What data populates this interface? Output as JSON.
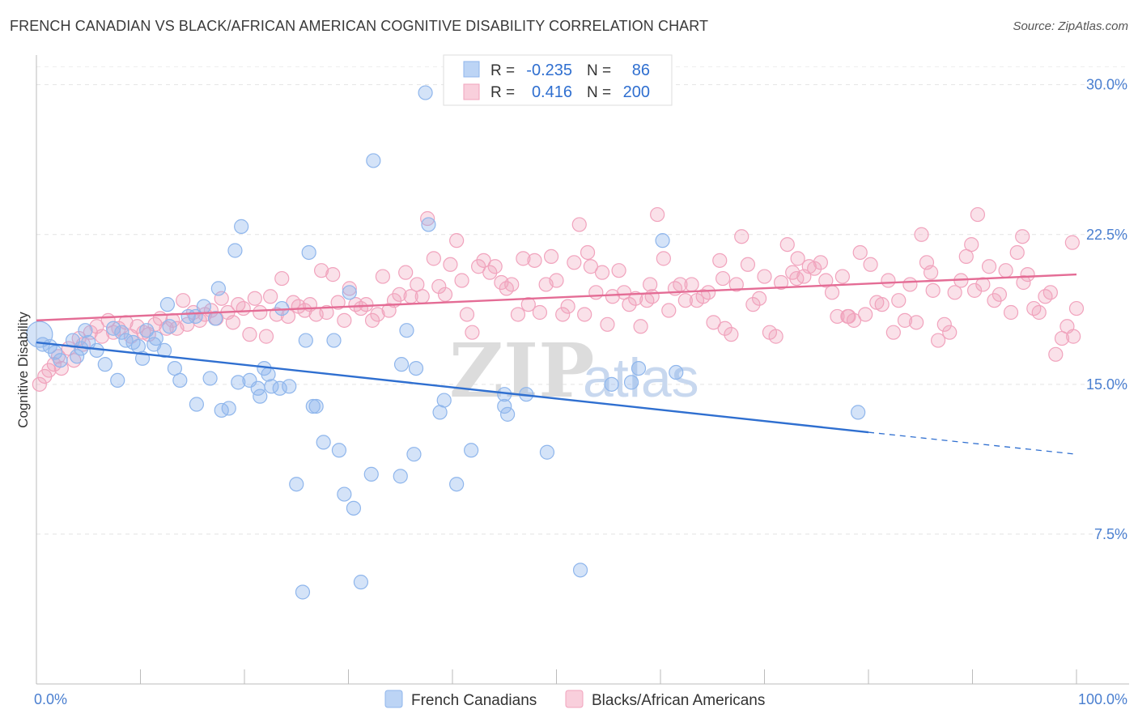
{
  "title": "FRENCH CANADIAN VS BLACK/AFRICAN AMERICAN COGNITIVE DISABILITY CORRELATION CHART",
  "source": "Source: ZipAtlas.com",
  "watermark": {
    "zip": "ZIP",
    "atlas": "atlas"
  },
  "chart_data": {
    "type": "scatter",
    "ylabel": "Cognitive Disability",
    "xlabel": "",
    "xlim": [
      0,
      100
    ],
    "ylim": [
      0,
      31
    ],
    "x_tick_labels": [
      "0.0%",
      "100.0%"
    ],
    "y_ticks": [
      7.5,
      15.0,
      22.5,
      30.0
    ],
    "y_tick_labels": [
      "7.5%",
      "15.0%",
      "22.5%",
      "30.0%"
    ],
    "grid": true,
    "legend_top": [
      {
        "r_label": "R =",
        "r_value": "-0.235",
        "n_label": "N =",
        "n_value": "86",
        "color": "#8fb6ec"
      },
      {
        "r_label": "R =",
        "r_value": "0.416",
        "n_label": "N =",
        "n_value": "200",
        "color": "#f1a3bd"
      }
    ],
    "series": [
      {
        "name": "French Canadians",
        "color": "#8fb6ec",
        "line_color": "#2f6fd0",
        "trend": {
          "x0": 0,
          "y0": 17.1,
          "x1": 80,
          "y1": 12.6,
          "dash_to_x": 100,
          "dash_to_y": 11.5
        },
        "points": [
          [
            0.3,
            17.5
          ],
          [
            0.6,
            17.0
          ],
          [
            1.3,
            16.9
          ],
          [
            1.8,
            16.6
          ],
          [
            2.3,
            16.2
          ],
          [
            3.5,
            17.2
          ],
          [
            3.9,
            16.4
          ],
          [
            4.3,
            16.8
          ],
          [
            4.7,
            17.7
          ],
          [
            5.0,
            17.1
          ],
          [
            5.8,
            16.7
          ],
          [
            6.6,
            16.0
          ],
          [
            7.4,
            17.8
          ],
          [
            7.8,
            15.2
          ],
          [
            8.2,
            17.6
          ],
          [
            8.6,
            17.2
          ],
          [
            9.3,
            17.1
          ],
          [
            9.8,
            16.9
          ],
          [
            10.2,
            16.3
          ],
          [
            10.6,
            17.7
          ],
          [
            11.3,
            17.0
          ],
          [
            11.5,
            17.3
          ],
          [
            12.3,
            16.7
          ],
          [
            12.8,
            17.9
          ],
          [
            12.6,
            19.0
          ],
          [
            13.3,
            15.8
          ],
          [
            13.8,
            15.2
          ],
          [
            14.6,
            18.4
          ],
          [
            15.3,
            18.4
          ],
          [
            15.4,
            14.0
          ],
          [
            16.1,
            18.9
          ],
          [
            16.7,
            15.3
          ],
          [
            17.2,
            18.3
          ],
          [
            17.5,
            19.8
          ],
          [
            17.8,
            13.7
          ],
          [
            18.5,
            13.8
          ],
          [
            19.1,
            21.7
          ],
          [
            19.4,
            15.1
          ],
          [
            19.7,
            22.9
          ],
          [
            20.5,
            15.2
          ],
          [
            21.3,
            14.8
          ],
          [
            21.5,
            14.4
          ],
          [
            21.9,
            15.8
          ],
          [
            22.3,
            15.5
          ],
          [
            22.6,
            14.9
          ],
          [
            23.4,
            14.8
          ],
          [
            23.6,
            18.8
          ],
          [
            24.3,
            14.9
          ],
          [
            25.0,
            10.0
          ],
          [
            25.6,
            4.6
          ],
          [
            25.9,
            17.2
          ],
          [
            26.2,
            21.6
          ],
          [
            26.6,
            13.9
          ],
          [
            26.9,
            13.9
          ],
          [
            27.6,
            12.1
          ],
          [
            28.6,
            17.2
          ],
          [
            29.1,
            11.7
          ],
          [
            29.6,
            9.5
          ],
          [
            30.1,
            19.6
          ],
          [
            30.5,
            8.8
          ],
          [
            31.2,
            5.1
          ],
          [
            32.2,
            10.5
          ],
          [
            32.4,
            26.2
          ],
          [
            35.0,
            10.4
          ],
          [
            35.1,
            16.0
          ],
          [
            35.6,
            17.7
          ],
          [
            36.3,
            11.5
          ],
          [
            36.5,
            15.8
          ],
          [
            37.7,
            23.0
          ],
          [
            37.4,
            29.6
          ],
          [
            38.8,
            13.6
          ],
          [
            39.2,
            14.2
          ],
          [
            40.4,
            10.0
          ],
          [
            41.8,
            11.7
          ],
          [
            45.0,
            14.5
          ],
          [
            45.0,
            13.9
          ],
          [
            45.3,
            13.5
          ],
          [
            47.1,
            14.5
          ],
          [
            49.1,
            11.6
          ],
          [
            52.3,
            5.7
          ],
          [
            55.3,
            15.0
          ],
          [
            57.2,
            15.1
          ],
          [
            57.9,
            15.8
          ],
          [
            60.2,
            22.2
          ],
          [
            61.5,
            15.6
          ],
          [
            79.0,
            13.6
          ]
        ]
      },
      {
        "name": "Blacks/African Americans",
        "color": "#f1a3bd",
        "line_color": "#e46c95",
        "trend": {
          "x0": 0,
          "y0": 18.2,
          "x1": 100,
          "y1": 20.5
        },
        "points": [
          [
            0.3,
            15.0
          ],
          [
            0.8,
            15.4
          ],
          [
            1.2,
            15.7
          ],
          [
            1.7,
            16.0
          ],
          [
            2.1,
            16.4
          ],
          [
            2.4,
            15.8
          ],
          [
            3.1,
            16.8
          ],
          [
            3.6,
            16.2
          ],
          [
            4.1,
            17.3
          ],
          [
            4.5,
            17.0
          ],
          [
            5.2,
            17.6
          ],
          [
            5.8,
            17.9
          ],
          [
            6.3,
            17.4
          ],
          [
            6.9,
            18.2
          ],
          [
            7.4,
            17.6
          ],
          [
            7.9,
            17.8
          ],
          [
            8.6,
            18.1
          ],
          [
            9.1,
            17.4
          ],
          [
            9.7,
            17.9
          ],
          [
            10.3,
            17.6
          ],
          [
            10.8,
            17.5
          ],
          [
            11.4,
            18.0
          ],
          [
            11.9,
            18.3
          ],
          [
            12.5,
            17.8
          ],
          [
            13.1,
            18.2
          ],
          [
            13.5,
            17.8
          ],
          [
            14.1,
            19.2
          ],
          [
            14.5,
            18.0
          ],
          [
            15.1,
            18.6
          ],
          [
            15.7,
            18.2
          ],
          [
            16.2,
            18.5
          ],
          [
            16.8,
            18.7
          ],
          [
            17.3,
            18.3
          ],
          [
            17.8,
            19.3
          ],
          [
            18.4,
            18.6
          ],
          [
            18.9,
            18.1
          ],
          [
            19.4,
            19.0
          ],
          [
            19.9,
            18.8
          ],
          [
            20.5,
            17.5
          ],
          [
            21.0,
            19.3
          ],
          [
            21.5,
            18.6
          ],
          [
            22.1,
            17.4
          ],
          [
            22.5,
            19.4
          ],
          [
            23.1,
            18.5
          ],
          [
            23.6,
            20.3
          ],
          [
            24.2,
            18.4
          ],
          [
            24.7,
            19.1
          ],
          [
            25.2,
            18.9
          ],
          [
            25.8,
            18.7
          ],
          [
            26.3,
            19.0
          ],
          [
            26.9,
            18.5
          ],
          [
            27.4,
            20.7
          ],
          [
            27.9,
            18.6
          ],
          [
            28.5,
            20.5
          ],
          [
            29.0,
            19.1
          ],
          [
            29.6,
            18.2
          ],
          [
            30.1,
            19.8
          ],
          [
            30.7,
            19.0
          ],
          [
            31.2,
            18.8
          ],
          [
            31.7,
            19.0
          ],
          [
            32.3,
            18.2
          ],
          [
            32.8,
            18.5
          ],
          [
            33.3,
            20.4
          ],
          [
            33.9,
            18.7
          ],
          [
            34.4,
            19.2
          ],
          [
            34.9,
            19.5
          ],
          [
            35.5,
            20.6
          ],
          [
            36.0,
            19.4
          ],
          [
            36.6,
            20.0
          ],
          [
            37.1,
            19.4
          ],
          [
            37.6,
            23.3
          ],
          [
            38.2,
            21.3
          ],
          [
            38.7,
            19.9
          ],
          [
            39.3,
            19.5
          ],
          [
            39.8,
            21.0
          ],
          [
            40.4,
            22.2
          ],
          [
            40.9,
            20.2
          ],
          [
            41.4,
            18.5
          ],
          [
            41.9,
            17.6
          ],
          [
            42.5,
            20.9
          ],
          [
            43.0,
            21.2
          ],
          [
            43.6,
            20.6
          ],
          [
            44.1,
            20.9
          ],
          [
            44.7,
            20.1
          ],
          [
            45.2,
            19.8
          ],
          [
            45.7,
            20.0
          ],
          [
            46.3,
            18.5
          ],
          [
            46.8,
            21.3
          ],
          [
            47.3,
            19.0
          ],
          [
            47.9,
            21.2
          ],
          [
            48.4,
            18.6
          ],
          [
            49.0,
            20.0
          ],
          [
            49.5,
            21.4
          ],
          [
            50.0,
            20.2
          ],
          [
            50.6,
            18.5
          ],
          [
            51.1,
            18.9
          ],
          [
            51.7,
            21.1
          ],
          [
            52.2,
            23.0
          ],
          [
            52.7,
            18.5
          ],
          [
            53.3,
            20.9
          ],
          [
            53.8,
            19.6
          ],
          [
            54.4,
            20.6
          ],
          [
            54.9,
            18.0
          ],
          [
            55.4,
            19.4
          ],
          [
            56.0,
            20.7
          ],
          [
            56.5,
            19.6
          ],
          [
            57.0,
            19.0
          ],
          [
            57.6,
            19.3
          ],
          [
            58.1,
            17.9
          ],
          [
            58.7,
            19.2
          ],
          [
            59.2,
            19.4
          ],
          [
            59.7,
            23.5
          ],
          [
            60.3,
            21.3
          ],
          [
            60.8,
            18.7
          ],
          [
            61.4,
            19.8
          ],
          [
            61.9,
            20.0
          ],
          [
            62.4,
            19.2
          ],
          [
            63.0,
            20.0
          ],
          [
            63.5,
            19.2
          ],
          [
            64.1,
            19.4
          ],
          [
            64.6,
            19.6
          ],
          [
            65.1,
            18.1
          ],
          [
            65.7,
            21.2
          ],
          [
            66.2,
            17.8
          ],
          [
            66.8,
            17.5
          ],
          [
            67.3,
            20.0
          ],
          [
            67.8,
            22.4
          ],
          [
            68.4,
            21.0
          ],
          [
            68.9,
            19.0
          ],
          [
            69.5,
            19.3
          ],
          [
            70.0,
            20.4
          ],
          [
            70.5,
            17.6
          ],
          [
            71.1,
            17.4
          ],
          [
            71.6,
            20.1
          ],
          [
            72.2,
            22.0
          ],
          [
            72.7,
            20.6
          ],
          [
            73.2,
            21.3
          ],
          [
            73.8,
            20.4
          ],
          [
            74.3,
            20.9
          ],
          [
            74.8,
            20.8
          ],
          [
            75.4,
            21.1
          ],
          [
            75.9,
            20.2
          ],
          [
            76.5,
            19.6
          ],
          [
            77.0,
            18.4
          ],
          [
            77.5,
            20.4
          ],
          [
            78.1,
            18.4
          ],
          [
            78.6,
            18.2
          ],
          [
            79.2,
            21.6
          ],
          [
            79.7,
            18.5
          ],
          [
            80.2,
            21.0
          ],
          [
            80.8,
            19.1
          ],
          [
            81.3,
            19.0
          ],
          [
            81.9,
            20.2
          ],
          [
            82.4,
            17.6
          ],
          [
            82.9,
            19.2
          ],
          [
            83.5,
            18.2
          ],
          [
            84.0,
            20.0
          ],
          [
            84.6,
            18.1
          ],
          [
            85.1,
            22.5
          ],
          [
            85.6,
            21.1
          ],
          [
            86.2,
            19.7
          ],
          [
            86.7,
            17.2
          ],
          [
            87.3,
            18.0
          ],
          [
            87.8,
            17.6
          ],
          [
            88.3,
            19.6
          ],
          [
            88.9,
            20.2
          ],
          [
            89.4,
            21.4
          ],
          [
            89.9,
            22.0
          ],
          [
            90.5,
            23.5
          ],
          [
            91.0,
            20.0
          ],
          [
            91.6,
            20.9
          ],
          [
            92.1,
            19.2
          ],
          [
            92.6,
            19.5
          ],
          [
            93.2,
            20.7
          ],
          [
            93.7,
            18.6
          ],
          [
            94.3,
            21.6
          ],
          [
            94.8,
            22.4
          ],
          [
            95.3,
            20.5
          ],
          [
            95.9,
            18.8
          ],
          [
            96.4,
            18.6
          ],
          [
            97.0,
            19.4
          ],
          [
            97.5,
            19.6
          ],
          [
            98.0,
            16.5
          ],
          [
            98.6,
            17.3
          ],
          [
            99.1,
            17.9
          ],
          [
            99.7,
            17.4
          ],
          [
            100.0,
            18.8
          ],
          [
            99.6,
            22.1
          ],
          [
            94.9,
            20.1
          ],
          [
            90.2,
            19.7
          ],
          [
            86.0,
            20.6
          ],
          [
            78.0,
            18.4
          ],
          [
            73.1,
            20.3
          ],
          [
            66.0,
            20.3
          ],
          [
            59.0,
            20.0
          ],
          [
            53.0,
            21.6
          ]
        ]
      }
    ]
  },
  "bottom_legend": [
    {
      "label": "French Canadians",
      "color": "#8fb6ec"
    },
    {
      "label": "Blacks/African Americans",
      "color": "#f1a3bd"
    }
  ]
}
